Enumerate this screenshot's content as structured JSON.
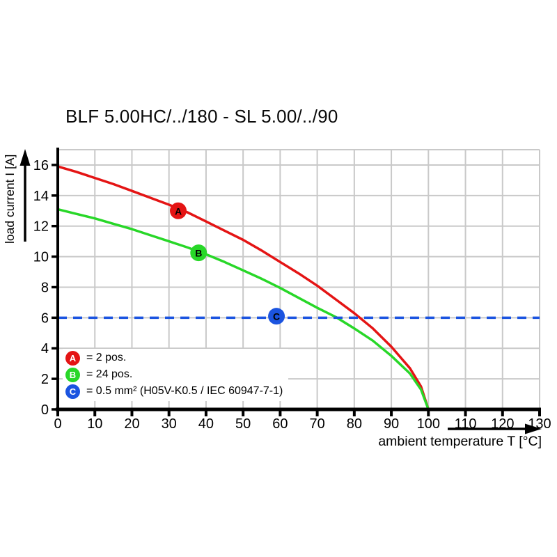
{
  "title": "BLF 5.00HC/../180 - SL 5.00/../90",
  "y_axis": {
    "label": "load current I [A]"
  },
  "x_axis": {
    "label": "ambient temperature T [°C]"
  },
  "legend": [
    {
      "letter": "A",
      "color": "#e41414",
      "text": "= 2 pos."
    },
    {
      "letter": "B",
      "color": "#28d728",
      "text": "= 24 pos."
    },
    {
      "letter": "C",
      "color": "#1b54e0",
      "text": "= 0.5 mm² (H05V-K0.5 / IEC 60947-7-1)"
    }
  ],
  "colors": {
    "grid": "#c9c9c9",
    "axis": "#000000",
    "background": "#ffffff",
    "curve_a": "#e41414",
    "curve_b": "#28d728",
    "curve_c": "#1b54e0"
  },
  "chart_data": {
    "type": "line",
    "title": "BLF 5.00HC/../180 - SL 5.00/../90",
    "xlabel": "ambient temperature T [°C]",
    "ylabel": "load current I [A]",
    "xlim": [
      0,
      130
    ],
    "ylim": [
      0,
      17
    ],
    "x_ticks": [
      0,
      10,
      20,
      30,
      40,
      50,
      60,
      70,
      80,
      90,
      100,
      110,
      120,
      130
    ],
    "y_ticks": [
      0,
      2,
      4,
      6,
      8,
      10,
      12,
      14,
      16
    ],
    "grid": true,
    "legend_position": "lower left",
    "series": [
      {
        "name": "A = 2 pos.",
        "color": "#e41414",
        "style": "solid",
        "marker": {
          "letter": "A",
          "x": 32.5,
          "y": 13.0
        },
        "points": [
          [
            0,
            15.9
          ],
          [
            5,
            15.55
          ],
          [
            10,
            15.15
          ],
          [
            15,
            14.75
          ],
          [
            20,
            14.3
          ],
          [
            25,
            13.85
          ],
          [
            30,
            13.4
          ],
          [
            35,
            12.9
          ],
          [
            40,
            12.3
          ],
          [
            45,
            11.7
          ],
          [
            50,
            11.1
          ],
          [
            55,
            10.4
          ],
          [
            60,
            9.65
          ],
          [
            65,
            8.9
          ],
          [
            70,
            8.1
          ],
          [
            75,
            7.2
          ],
          [
            80,
            6.3
          ],
          [
            85,
            5.3
          ],
          [
            90,
            4.1
          ],
          [
            95,
            2.7
          ],
          [
            98,
            1.5
          ],
          [
            100,
            0
          ]
        ]
      },
      {
        "name": "B = 24 pos.",
        "color": "#28d728",
        "style": "solid",
        "marker": {
          "letter": "B",
          "x": 38,
          "y": 10.25
        },
        "points": [
          [
            0,
            13.1
          ],
          [
            5,
            12.8
          ],
          [
            10,
            12.5
          ],
          [
            15,
            12.15
          ],
          [
            20,
            11.8
          ],
          [
            25,
            11.4
          ],
          [
            30,
            11.0
          ],
          [
            35,
            10.6
          ],
          [
            40,
            10.15
          ],
          [
            45,
            9.65
          ],
          [
            50,
            9.1
          ],
          [
            55,
            8.55
          ],
          [
            60,
            7.95
          ],
          [
            65,
            7.3
          ],
          [
            70,
            6.65
          ],
          [
            75,
            6.05
          ],
          [
            80,
            5.3
          ],
          [
            85,
            4.5
          ],
          [
            90,
            3.5
          ],
          [
            95,
            2.35
          ],
          [
            98,
            1.3
          ],
          [
            100,
            0
          ]
        ]
      },
      {
        "name": "C = 0.5 mm² (H05V-K0.5 / IEC 60947-7-1)",
        "color": "#1b54e0",
        "style": "dashed",
        "marker": {
          "letter": "C",
          "x": 59,
          "y": 6.1
        },
        "points": [
          [
            0,
            6
          ],
          [
            130,
            6
          ]
        ]
      }
    ]
  }
}
